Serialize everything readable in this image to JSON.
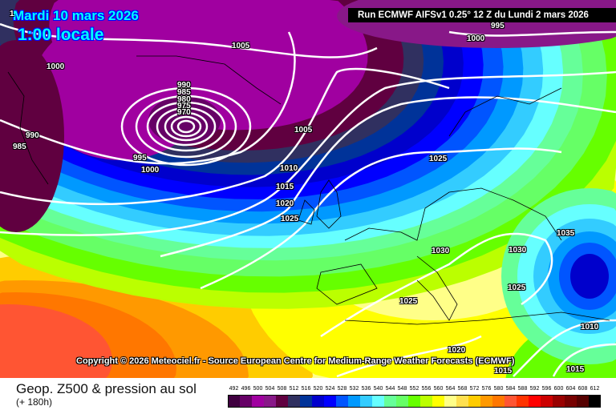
{
  "header": {
    "date": "Mardi 10 mars 2026",
    "time": "1:00 locale",
    "run": "Run ECMWF AIFSv1 0.25° 12 Z du Lundi 2 mars 2026"
  },
  "copyright": "Copyright © 2026 Meteociel.fr - Source European Centre for Medium-Range Weather Forecasts (ECMWF)",
  "isobar_labels": [
    "1",
    "1000",
    "1005",
    "990",
    "985",
    "995",
    "1000",
    "990",
    "985",
    "980",
    "975",
    "970",
    "1005",
    "1010",
    "1015",
    "1020",
    "1025",
    "1025",
    "1030",
    "1030",
    "1035",
    "1025",
    "1025",
    "1020",
    "1015",
    "1010",
    "1015",
    "995",
    "1000"
  ],
  "footer": {
    "title": "Geop. Z500 & pression au sol",
    "subtitle": "(+ 180h)"
  },
  "legend": {
    "labels": [
      "492",
      "496",
      "500",
      "504",
      "508",
      "512",
      "516",
      "520",
      "524",
      "528",
      "532",
      "536",
      "540",
      "544",
      "548",
      "552",
      "556",
      "560",
      "564",
      "568",
      "572",
      "576",
      "580",
      "584",
      "588",
      "592",
      "596",
      "600",
      "604",
      "608",
      "612"
    ],
    "colors": [
      "#400040",
      "#660066",
      "#a000a0",
      "#881888",
      "#600040",
      "#303060",
      "#003399",
      "#0000cc",
      "#0000ff",
      "#0055ff",
      "#0099ff",
      "#33ccff",
      "#66ffff",
      "#66ff99",
      "#66ff66",
      "#66ff00",
      "#bbff00",
      "#ffff00",
      "#ffff88",
      "#ffe050",
      "#ffcc00",
      "#ff9900",
      "#ff7700",
      "#ff5533",
      "#ff3300",
      "#ff0000",
      "#cc0000",
      "#990000",
      "#770000",
      "#550000",
      "#000000"
    ]
  }
}
